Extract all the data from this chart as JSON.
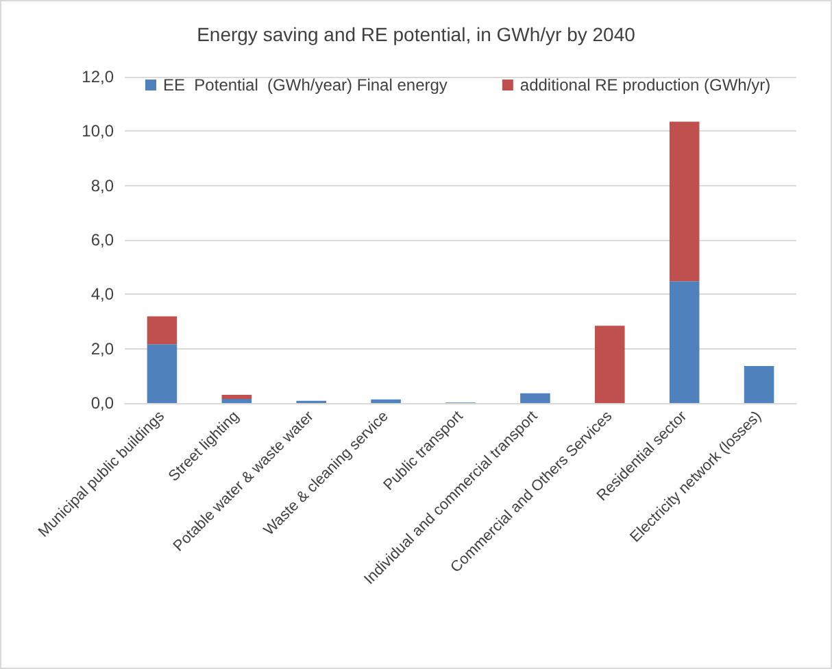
{
  "chart_data": {
    "type": "bar",
    "title": "Energy saving and RE potential, in GWh/yr by 2040",
    "stacked": true,
    "categories": [
      "Municipal public buildings",
      "Street lighting",
      "Potable water & waste water",
      "Waste & cleaning service",
      "Public transport",
      "Individual and commercial transport",
      "Commercial and Others Services",
      "Residential sector",
      "Electricity network (losses)"
    ],
    "series": [
      {
        "name": "EE  Potential  (GWh/year) Final energy",
        "color": "#4f81bd",
        "values": [
          2.16,
          0.15,
          0.08,
          0.13,
          0.02,
          0.36,
          0,
          4.48,
          1.36
        ]
      },
      {
        "name": "additional RE production (GWh/yr)",
        "color": "#c0504d",
        "values": [
          1.03,
          0.15,
          0,
          0,
          0,
          0,
          2.84,
          5.87,
          0
        ]
      }
    ],
    "ylim": [
      0,
      12
    ],
    "yticks": [
      {
        "value": 0,
        "label": "0,0"
      },
      {
        "value": 2,
        "label": "2,0"
      },
      {
        "value": 4,
        "label": "4,0"
      },
      {
        "value": 6,
        "label": "6,0"
      },
      {
        "value": 8,
        "label": "8,0"
      },
      {
        "value": 10,
        "label": "10,0"
      },
      {
        "value": 12,
        "label": "12,0"
      }
    ],
    "grid": "y",
    "legend": "top"
  }
}
